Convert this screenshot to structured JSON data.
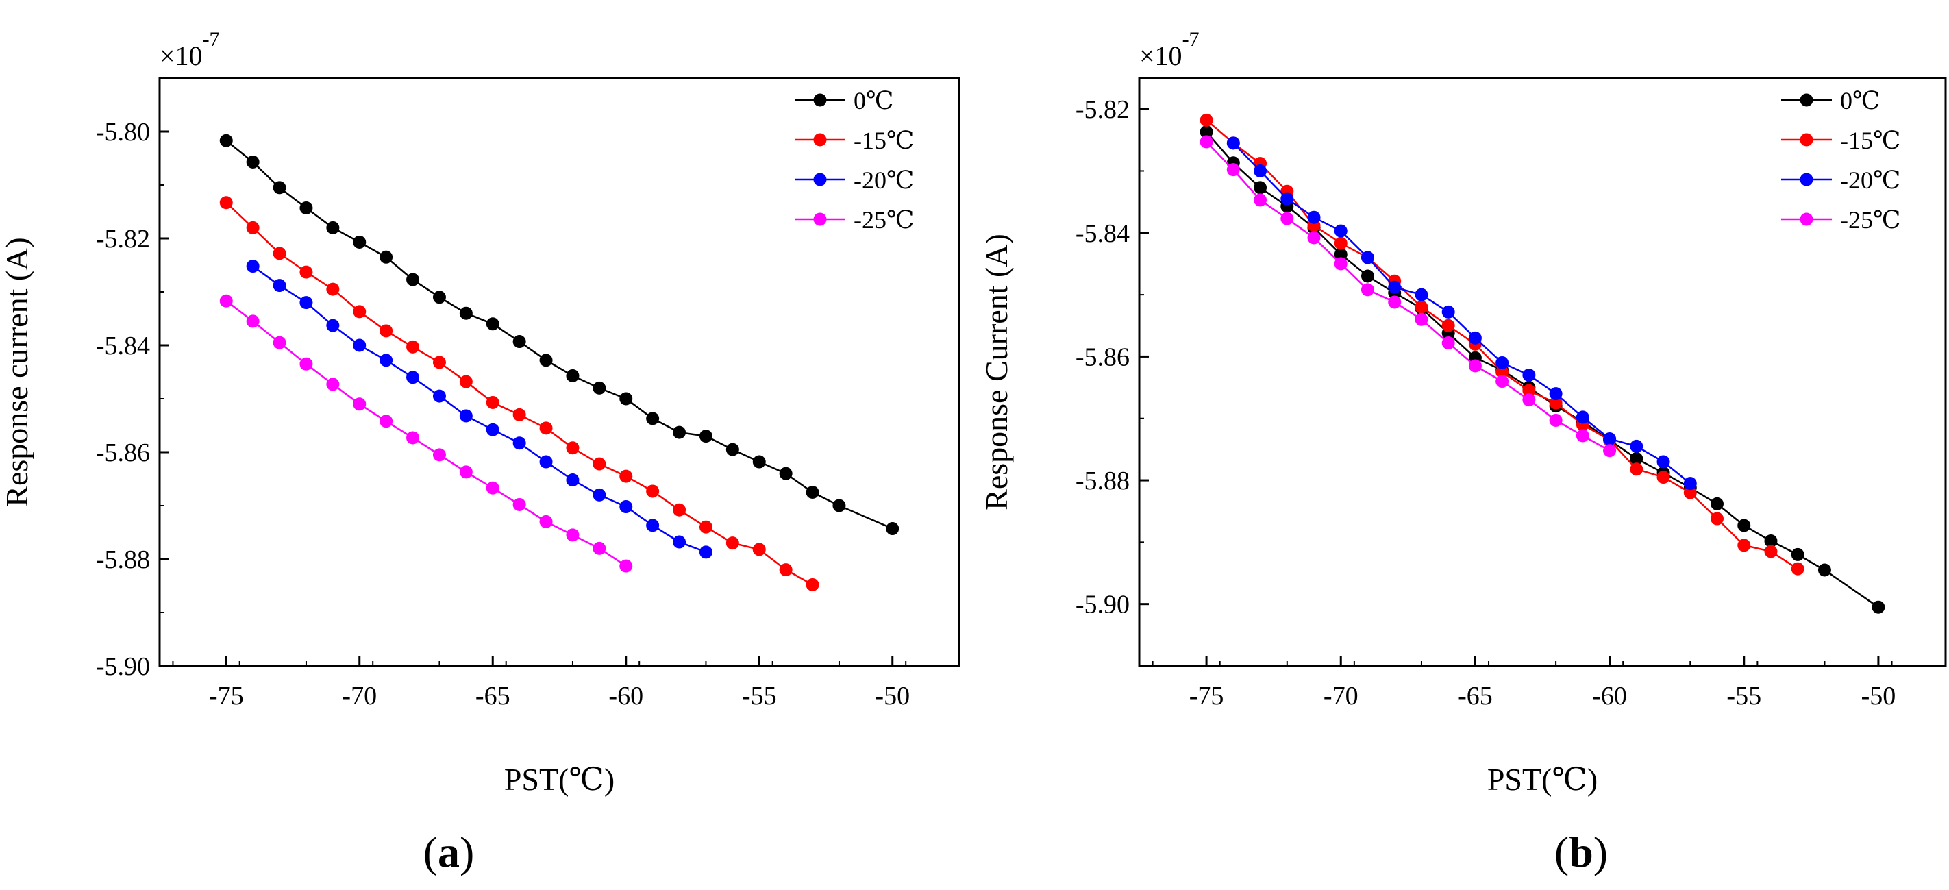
{
  "chart_data": [
    {
      "panel_label": "(a)",
      "panel_letter": "a",
      "type": "line",
      "title": "",
      "xlabel": "PST(℃)",
      "ylabel": "Response current (A)",
      "y_multiplier": "×10",
      "y_multiplier_exp": "-7",
      "xlim": [
        -77.5,
        -47.5
      ],
      "ylim": [
        -5.9,
        -5.79
      ],
      "xticks": [
        -75,
        -70,
        -65,
        -60,
        -55,
        -50
      ],
      "yticks": [
        -5.8,
        -5.82,
        -5.84,
        -5.86,
        -5.88,
        -5.9
      ],
      "grid": false,
      "legend_position": "top-right",
      "series": [
        {
          "name": "0℃",
          "color": "#000000",
          "points": [
            [
              -75,
              -5.8017
            ],
            [
              -74,
              -5.8057
            ],
            [
              -73,
              -5.8105
            ],
            [
              -72,
              -5.8143
            ],
            [
              -71,
              -5.818
            ],
            [
              -70,
              -5.8207
            ],
            [
              -69,
              -5.8235
            ],
            [
              -68,
              -5.8277
            ],
            [
              -67,
              -5.831
            ],
            [
              -66,
              -5.834
            ],
            [
              -65,
              -5.836
            ],
            [
              -64,
              -5.8393
            ],
            [
              -63,
              -5.8428
            ],
            [
              -62,
              -5.8457
            ],
            [
              -61,
              -5.848
            ],
            [
              -60,
              -5.85
            ],
            [
              -59,
              -5.8537
            ],
            [
              -58,
              -5.8563
            ],
            [
              -57,
              -5.857
            ],
            [
              -56,
              -5.8595
            ],
            [
              -55,
              -5.8618
            ],
            [
              -54,
              -5.864
            ],
            [
              -53,
              -5.8675
            ],
            [
              -52,
              -5.87
            ],
            [
              -50,
              -5.8743
            ]
          ]
        },
        {
          "name": "-15℃",
          "color": "#ff0000",
          "points": [
            [
              -75,
              -5.8133
            ],
            [
              -74,
              -5.818
            ],
            [
              -73,
              -5.8228
            ],
            [
              -72,
              -5.8263
            ],
            [
              -71,
              -5.8295
            ],
            [
              -70,
              -5.8337
            ],
            [
              -69,
              -5.8373
            ],
            [
              -68,
              -5.8403
            ],
            [
              -67,
              -5.8432
            ],
            [
              -66,
              -5.8468
            ],
            [
              -65,
              -5.8507
            ],
            [
              -64,
              -5.853
            ],
            [
              -63,
              -5.8555
            ],
            [
              -62,
              -5.8592
            ],
            [
              -61,
              -5.8622
            ],
            [
              -60,
              -5.8645
            ],
            [
              -59,
              -5.8673
            ],
            [
              -58,
              -5.8708
            ],
            [
              -57,
              -5.874
            ],
            [
              -56,
              -5.877
            ],
            [
              -55,
              -5.8782
            ],
            [
              -54,
              -5.882
            ],
            [
              -53,
              -5.8848
            ]
          ]
        },
        {
          "name": "-20℃",
          "color": "#0000ff",
          "points": [
            [
              -74,
              -5.8252
            ],
            [
              -73,
              -5.8288
            ],
            [
              -72,
              -5.832
            ],
            [
              -71,
              -5.8363
            ],
            [
              -70,
              -5.84
            ],
            [
              -69,
              -5.8428
            ],
            [
              -68,
              -5.846
            ],
            [
              -67,
              -5.8495
            ],
            [
              -66,
              -5.8532
            ],
            [
              -65,
              -5.8558
            ],
            [
              -64,
              -5.8583
            ],
            [
              -63,
              -5.8618
            ],
            [
              -62,
              -5.8652
            ],
            [
              -61,
              -5.868
            ],
            [
              -60,
              -5.8702
            ],
            [
              -59,
              -5.8737
            ],
            [
              -58,
              -5.8768
            ],
            [
              -57,
              -5.8787
            ]
          ]
        },
        {
          "name": "-25℃",
          "color": "#ff00ff",
          "points": [
            [
              -75,
              -5.8317
            ],
            [
              -74,
              -5.8355
            ],
            [
              -73,
              -5.8395
            ],
            [
              -72,
              -5.8435
            ],
            [
              -71,
              -5.8473
            ],
            [
              -70,
              -5.851
            ],
            [
              -69,
              -5.8542
            ],
            [
              -68,
              -5.8573
            ],
            [
              -67,
              -5.8605
            ],
            [
              -66,
              -5.8637
            ],
            [
              -65,
              -5.8667
            ],
            [
              -64,
              -5.8698
            ],
            [
              -63,
              -5.873
            ],
            [
              -62,
              -5.8755
            ],
            [
              -61,
              -5.878
            ],
            [
              -60,
              -5.8813
            ]
          ]
        }
      ]
    },
    {
      "panel_label": "(b)",
      "panel_letter": "b",
      "type": "line",
      "title": "",
      "xlabel": "PST(℃)",
      "ylabel": "Response Current (A)",
      "y_multiplier": "×10",
      "y_multiplier_exp": "-7",
      "xlim": [
        -77.5,
        -47.5
      ],
      "ylim": [
        -5.91,
        -5.815
      ],
      "xticks": [
        -75,
        -70,
        -65,
        -60,
        -55,
        -50
      ],
      "yticks": [
        -5.82,
        -5.84,
        -5.86,
        -5.88,
        -5.9
      ],
      "grid": false,
      "legend_position": "top-right",
      "series": [
        {
          "name": "0℃",
          "color": "#000000",
          "points": [
            [
              -75,
              -5.8237
            ],
            [
              -74,
              -5.8287
            ],
            [
              -73,
              -5.8327
            ],
            [
              -72,
              -5.8357
            ],
            [
              -71,
              -5.8392
            ],
            [
              -70,
              -5.8435
            ],
            [
              -69,
              -5.847
            ],
            [
              -68,
              -5.8497
            ],
            [
              -67,
              -5.8522
            ],
            [
              -66,
              -5.8562
            ],
            [
              -65,
              -5.8602
            ],
            [
              -64,
              -5.8622
            ],
            [
              -63,
              -5.865
            ],
            [
              -62,
              -5.868
            ],
            [
              -61,
              -5.8705
            ],
            [
              -60,
              -5.8735
            ],
            [
              -59,
              -5.8765
            ],
            [
              -58,
              -5.8788
            ],
            [
              -57,
              -5.8812
            ],
            [
              -56,
              -5.8838
            ],
            [
              -55,
              -5.8873
            ],
            [
              -54,
              -5.8898
            ],
            [
              -53,
              -5.892
            ],
            [
              -52,
              -5.8945
            ],
            [
              -50,
              -5.9005
            ]
          ]
        },
        {
          "name": "-15℃",
          "color": "#ff0000",
          "points": [
            [
              -75,
              -5.8218
            ],
            [
              -74,
              -5.8255
            ],
            [
              -73,
              -5.8288
            ],
            [
              -72,
              -5.8333
            ],
            [
              -71,
              -5.8388
            ],
            [
              -70,
              -5.8417
            ],
            [
              -69,
              -5.844
            ],
            [
              -68,
              -5.8478
            ],
            [
              -67,
              -5.852
            ],
            [
              -66,
              -5.855
            ],
            [
              -65,
              -5.858
            ],
            [
              -64,
              -5.8625
            ],
            [
              -63,
              -5.8655
            ],
            [
              -62,
              -5.8675
            ],
            [
              -61,
              -5.871
            ],
            [
              -60,
              -5.8735
            ],
            [
              -59,
              -5.8782
            ],
            [
              -58,
              -5.8795
            ],
            [
              -57,
              -5.882
            ],
            [
              -56,
              -5.8862
            ],
            [
              -55,
              -5.8905
            ],
            [
              -54,
              -5.8915
            ],
            [
              -53,
              -5.8943
            ]
          ]
        },
        {
          "name": "-20℃",
          "color": "#0000ff",
          "points": [
            [
              -74,
              -5.8255
            ],
            [
              -73,
              -5.83
            ],
            [
              -72,
              -5.8345
            ],
            [
              -71,
              -5.8375
            ],
            [
              -70,
              -5.8397
            ],
            [
              -69,
              -5.844
            ],
            [
              -68,
              -5.8488
            ],
            [
              -67,
              -5.85
            ],
            [
              -66,
              -5.8528
            ],
            [
              -65,
              -5.857
            ],
            [
              -64,
              -5.861
            ],
            [
              -63,
              -5.863
            ],
            [
              -62,
              -5.866
            ],
            [
              -61,
              -5.8698
            ],
            [
              -60,
              -5.8733
            ],
            [
              -59,
              -5.8745
            ],
            [
              -58,
              -5.877
            ],
            [
              -57,
              -5.8805
            ]
          ]
        },
        {
          "name": "-25℃",
          "color": "#ff00ff",
          "points": [
            [
              -75,
              -5.8253
            ],
            [
              -74,
              -5.8298
            ],
            [
              -73,
              -5.8347
            ],
            [
              -72,
              -5.8377
            ],
            [
              -71,
              -5.8408
            ],
            [
              -70,
              -5.845
            ],
            [
              -69,
              -5.8492
            ],
            [
              -68,
              -5.8512
            ],
            [
              -67,
              -5.854
            ],
            [
              -66,
              -5.8578
            ],
            [
              -65,
              -5.8615
            ],
            [
              -64,
              -5.864
            ],
            [
              -63,
              -5.867
            ],
            [
              -62,
              -5.8703
            ],
            [
              -61,
              -5.8728
            ],
            [
              -60,
              -5.8752
            ]
          ]
        }
      ]
    }
  ]
}
